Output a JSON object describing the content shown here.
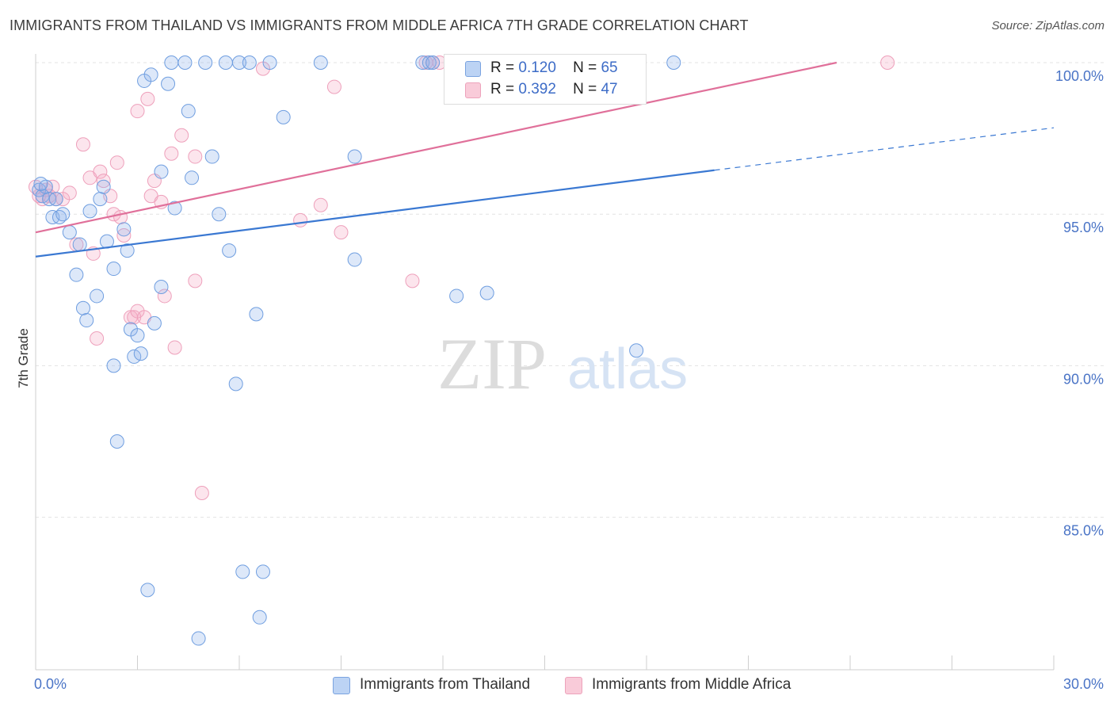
{
  "title": "IMMIGRANTS FROM THAILAND VS IMMIGRANTS FROM MIDDLE AFRICA 7TH GRADE CORRELATION CHART",
  "source": "Source: ZipAtlas.com",
  "watermark": {
    "zip": "ZIP",
    "atlas": "atlas"
  },
  "legend": {
    "r_label": "R =",
    "n_label": "N =",
    "rows": [
      {
        "r": "0.120",
        "n": "65"
      },
      {
        "r": "0.392",
        "n": "47"
      }
    ]
  },
  "bottom_legend": [
    "Immigrants from Thailand",
    "Immigrants from Middle Africa"
  ],
  "chart_data": {
    "type": "scatter",
    "ylabel": "7th Grade",
    "xlim": [
      0,
      30
    ],
    "ylim": [
      80.5,
      100.7
    ],
    "x_tick_labels": [
      "0.0%",
      "30.0%"
    ],
    "y_ticks": [
      85,
      90,
      95,
      100
    ],
    "y_tick_labels": [
      "85.0%",
      "90.0%",
      "95.0%",
      "100.0%"
    ],
    "grid": true,
    "colors": {
      "thailand": "#8fb4ea",
      "thailand_line": "#3a78d2",
      "africa": "#f4a9c2",
      "africa_line": "#e0709a"
    },
    "series": [
      {
        "name": "Immigrants from Thailand",
        "r": 0.12,
        "n": 65,
        "trend": {
          "x0": 0,
          "y0": 93.6,
          "x1": 20,
          "y1": 96.45,
          "dash_x1": 30,
          "dash_y1": 97.85
        },
        "points": [
          [
            0.1,
            95.8
          ],
          [
            0.2,
            95.6
          ],
          [
            0.3,
            95.9
          ],
          [
            0.4,
            95.5
          ],
          [
            0.5,
            94.9
          ],
          [
            0.6,
            95.5
          ],
          [
            0.7,
            94.9
          ],
          [
            0.8,
            95.0
          ],
          [
            1.0,
            94.4
          ],
          [
            1.2,
            93.0
          ],
          [
            1.3,
            94.0
          ],
          [
            1.4,
            91.9
          ],
          [
            1.5,
            91.5
          ],
          [
            1.6,
            95.1
          ],
          [
            1.8,
            92.3
          ],
          [
            1.9,
            95.5
          ],
          [
            2.0,
            95.9
          ],
          [
            2.1,
            94.1
          ],
          [
            2.3,
            93.2
          ],
          [
            2.3,
            90.0
          ],
          [
            2.4,
            87.5
          ],
          [
            2.6,
            94.5
          ],
          [
            2.7,
            93.8
          ],
          [
            2.8,
            91.2
          ],
          [
            2.9,
            90.3
          ],
          [
            3.0,
            91.0
          ],
          [
            3.1,
            90.4
          ],
          [
            3.2,
            99.4
          ],
          [
            3.3,
            82.6
          ],
          [
            3.4,
            99.6
          ],
          [
            3.5,
            91.4
          ],
          [
            3.7,
            92.6
          ],
          [
            3.7,
            96.4
          ],
          [
            3.9,
            99.3
          ],
          [
            4.0,
            100.0
          ],
          [
            4.1,
            95.2
          ],
          [
            4.4,
            100.0
          ],
          [
            4.5,
            98.4
          ],
          [
            4.6,
            96.2
          ],
          [
            4.8,
            81.0
          ],
          [
            5.0,
            100.0
          ],
          [
            5.2,
            96.9
          ],
          [
            5.4,
            95.0
          ],
          [
            5.6,
            100.0
          ],
          [
            5.7,
            93.8
          ],
          [
            5.9,
            89.4
          ],
          [
            6.0,
            100.0
          ],
          [
            6.1,
            83.2
          ],
          [
            6.3,
            100.0
          ],
          [
            6.5,
            91.7
          ],
          [
            6.6,
            81.7
          ],
          [
            6.7,
            83.2
          ],
          [
            6.9,
            100.0
          ],
          [
            7.3,
            98.2
          ],
          [
            8.4,
            100.0
          ],
          [
            9.4,
            96.9
          ],
          [
            9.4,
            93.5
          ],
          [
            11.4,
            100.0
          ],
          [
            11.6,
            100.0
          ],
          [
            11.7,
            100.0
          ],
          [
            12.4,
            92.3
          ],
          [
            13.3,
            92.4
          ],
          [
            17.7,
            90.5
          ],
          [
            18.8,
            100.0
          ],
          [
            0.15,
            96.0
          ]
        ]
      },
      {
        "name": "Immigrants from Middle Africa",
        "r": 0.392,
        "n": 47,
        "trend": {
          "x0": 0,
          "y0": 94.4,
          "x1": 23.6,
          "y1": 100.0
        },
        "points": [
          [
            0.1,
            95.6
          ],
          [
            0.2,
            95.5
          ],
          [
            0.3,
            95.8
          ],
          [
            0.4,
            95.6
          ],
          [
            0.5,
            95.9
          ],
          [
            0.6,
            95.5
          ],
          [
            0.8,
            95.5
          ],
          [
            1.0,
            95.7
          ],
          [
            1.2,
            94.0
          ],
          [
            1.4,
            97.3
          ],
          [
            1.6,
            96.2
          ],
          [
            1.7,
            93.7
          ],
          [
            1.8,
            90.9
          ],
          [
            1.9,
            96.4
          ],
          [
            2.0,
            96.1
          ],
          [
            2.2,
            95.6
          ],
          [
            2.3,
            95.0
          ],
          [
            2.4,
            96.7
          ],
          [
            2.5,
            94.9
          ],
          [
            2.6,
            94.3
          ],
          [
            2.8,
            91.6
          ],
          [
            2.9,
            91.6
          ],
          [
            3.0,
            91.8
          ],
          [
            3.0,
            98.4
          ],
          [
            3.2,
            91.6
          ],
          [
            3.3,
            98.8
          ],
          [
            3.4,
            95.6
          ],
          [
            3.5,
            96.1
          ],
          [
            3.7,
            95.4
          ],
          [
            3.8,
            92.3
          ],
          [
            4.0,
            97.0
          ],
          [
            4.1,
            90.6
          ],
          [
            4.3,
            97.6
          ],
          [
            4.7,
            96.9
          ],
          [
            4.7,
            92.8
          ],
          [
            4.9,
            85.8
          ],
          [
            6.7,
            99.8
          ],
          [
            7.8,
            94.8
          ],
          [
            8.4,
            95.3
          ],
          [
            8.8,
            99.2
          ],
          [
            9.0,
            94.4
          ],
          [
            11.1,
            92.8
          ],
          [
            11.5,
            100.0
          ],
          [
            11.7,
            100.0
          ],
          [
            11.9,
            100.0
          ],
          [
            25.1,
            100.0
          ],
          [
            0.0,
            95.9
          ]
        ]
      }
    ]
  }
}
